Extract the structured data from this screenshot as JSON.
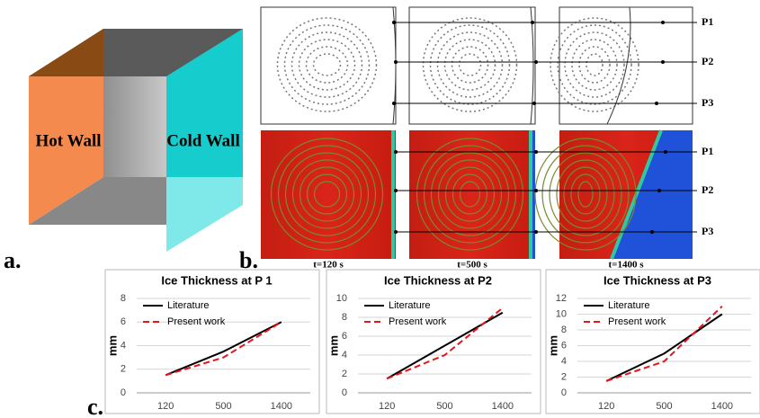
{
  "panel_a": {
    "label": "a.",
    "hot_wall": "Hot Wall",
    "cold_wall": "Cold Wall"
  },
  "panel_b": {
    "label": "b.",
    "points_top": [
      "P1",
      "P2",
      "P3"
    ],
    "points_bottom": [
      "P1",
      "P2",
      "P3"
    ],
    "times": [
      "t=120 s",
      "t=500 s",
      "t=1400 s"
    ]
  },
  "panel_c": {
    "label": "c."
  },
  "chart_data": [
    {
      "type": "line",
      "title": "Ice Thickness at P 1",
      "y_label": "mm",
      "categories": [
        "120",
        "500",
        "1400"
      ],
      "series": [
        {
          "name": "Literature",
          "color": "#000000",
          "dash": false,
          "values": [
            1.5,
            3.5,
            6
          ]
        },
        {
          "name": "Present work",
          "color": "#e8141a",
          "dash": true,
          "values": [
            1.5,
            3,
            6
          ]
        }
      ],
      "ylim": [
        0,
        8
      ],
      "yticks": [
        0,
        2,
        4,
        6,
        8
      ],
      "grid": true
    },
    {
      "type": "line",
      "title": "Ice Thickness at P2",
      "y_label": "mm",
      "categories": [
        "120",
        "500",
        "1400"
      ],
      "series": [
        {
          "name": "Literature",
          "color": "#000000",
          "dash": false,
          "values": [
            1.5,
            5,
            8.5
          ]
        },
        {
          "name": "Present work",
          "color": "#e8141a",
          "dash": true,
          "values": [
            1.5,
            4,
            9
          ]
        }
      ],
      "ylim": [
        0,
        10
      ],
      "yticks": [
        0,
        2,
        4,
        6,
        8,
        10
      ],
      "grid": true
    },
    {
      "type": "line",
      "title": "Ice Thickness at P3",
      "y_label": "mm",
      "categories": [
        "120",
        "500",
        "1400"
      ],
      "series": [
        {
          "name": "Literature",
          "color": "#000000",
          "dash": false,
          "values": [
            1.5,
            5,
            10
          ]
        },
        {
          "name": "Present work",
          "color": "#e8141a",
          "dash": true,
          "values": [
            1.5,
            4,
            11
          ]
        }
      ],
      "ylim": [
        0,
        12
      ],
      "yticks": [
        0,
        2,
        4,
        6,
        8,
        10,
        12
      ],
      "grid": true
    }
  ]
}
